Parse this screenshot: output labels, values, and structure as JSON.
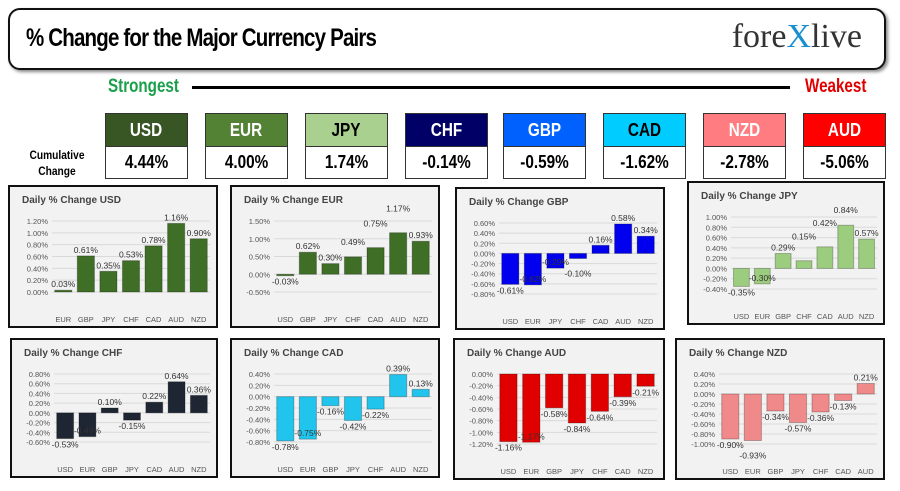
{
  "header": {
    "title": "% Change for the Major Currency Pairs",
    "logo": "forexlive"
  },
  "scale": {
    "strongest": "Strongest",
    "weakest": "Weakest"
  },
  "cumulative_label": "Cumulative Change",
  "currencies": [
    {
      "name": "USD",
      "value": "4.44%",
      "color": "#375623",
      "text": "#ffffff"
    },
    {
      "name": "EUR",
      "value": "4.00%",
      "color": "#548235",
      "text": "#ffffff"
    },
    {
      "name": "JPY",
      "value": "1.74%",
      "color": "#a9d08e",
      "text": "#000000"
    },
    {
      "name": "CHF",
      "value": "-0.14%",
      "color": "#000066",
      "text": "#ffffff"
    },
    {
      "name": "GBP",
      "value": "-0.59%",
      "color": "#0061ff",
      "text": "#ffffff"
    },
    {
      "name": "CAD",
      "value": "-1.62%",
      "color": "#00ccff",
      "text": "#000000"
    },
    {
      "name": "NZD",
      "value": "-2.78%",
      "color": "#ff7c80",
      "text": "#ffffff"
    },
    {
      "name": "AUD",
      "value": "-5.06%",
      "color": "#ff0000",
      "text": "#ffffff"
    }
  ],
  "chart_data": [
    {
      "type": "bar",
      "title": "Daily % Change USD",
      "categories": [
        "EUR",
        "GBP",
        "JPY",
        "CHF",
        "CAD",
        "AUD",
        "NZD"
      ],
      "values": [
        0.03,
        0.61,
        0.35,
        0.53,
        0.78,
        1.16,
        0.9
      ],
      "ylim": [
        0,
        1.2
      ],
      "ystep": 0.2,
      "color": "#3f6e26",
      "grid": true
    },
    {
      "type": "bar",
      "title": "Daily % Change EUR",
      "categories": [
        "USD",
        "GBP",
        "JPY",
        "CHF",
        "CAD",
        "AUD",
        "NZD"
      ],
      "values": [
        -0.03,
        0.62,
        0.3,
        0.49,
        0.75,
        1.17,
        0.93
      ],
      "ylim": [
        -0.5,
        1.5
      ],
      "ystep": 0.5,
      "color": "#3f6e26",
      "grid": true
    },
    {
      "type": "bar",
      "title": "Daily % Change GBP",
      "categories": [
        "USD",
        "EUR",
        "JPY",
        "CHF",
        "CAD",
        "AUD",
        "NZD"
      ],
      "values": [
        -0.61,
        -0.62,
        -0.29,
        -0.1,
        0.16,
        0.58,
        0.34
      ],
      "ylim": [
        -0.8,
        0.6
      ],
      "ystep": 0.2,
      "color": "#0000ee",
      "grid": true
    },
    {
      "type": "bar",
      "title": "Daily % Change JPY",
      "categories": [
        "USD",
        "EUR",
        "GBP",
        "CHF",
        "CAD",
        "AUD",
        "NZD"
      ],
      "values": [
        -0.35,
        -0.3,
        0.29,
        0.15,
        0.42,
        0.84,
        0.57
      ],
      "ylim": [
        -0.4,
        1.0
      ],
      "ystep": 0.2,
      "color": "#9ccc7e",
      "grid": true
    },
    {
      "type": "bar",
      "title": "Daily % Change CHF",
      "categories": [
        "USD",
        "EUR",
        "GBP",
        "JPY",
        "CAD",
        "AUD",
        "NZD"
      ],
      "values": [
        -0.53,
        -0.49,
        0.1,
        -0.15,
        0.22,
        0.64,
        0.36
      ],
      "ylim": [
        -0.6,
        0.8
      ],
      "ystep": 0.2,
      "color": "#1e2633",
      "grid": true
    },
    {
      "type": "bar",
      "title": "Daily % Change CAD",
      "categories": [
        "USD",
        "EUR",
        "GBP",
        "JPY",
        "CHF",
        "AUD",
        "NZD"
      ],
      "values": [
        -0.78,
        -0.75,
        -0.16,
        -0.42,
        -0.22,
        0.39,
        0.13
      ],
      "ylim": [
        -0.8,
        0.4
      ],
      "ystep": 0.2,
      "color": "#20c4ec",
      "grid": true
    },
    {
      "type": "bar",
      "title": "Daily % Change AUD",
      "categories": [
        "USD",
        "EUR",
        "GBP",
        "JPY",
        "CHF",
        "CAD",
        "NZD"
      ],
      "values": [
        -1.16,
        -1.17,
        -0.58,
        -0.84,
        -0.64,
        -0.39,
        -0.21
      ],
      "ylim": [
        -1.2,
        0.0
      ],
      "ystep": 0.2,
      "color": "#e00000",
      "grid": true
    },
    {
      "type": "bar",
      "title": "Daily % Change NZD",
      "categories": [
        "USD",
        "EUR",
        "GBP",
        "JPY",
        "CHF",
        "CAD",
        "AUD"
      ],
      "values": [
        -0.9,
        -0.93,
        -0.34,
        -0.57,
        -0.36,
        -0.13,
        0.21
      ],
      "ylim": [
        -1.0,
        0.4
      ],
      "ystep": 0.2,
      "color": "#f08a8a",
      "grid": true
    }
  ]
}
